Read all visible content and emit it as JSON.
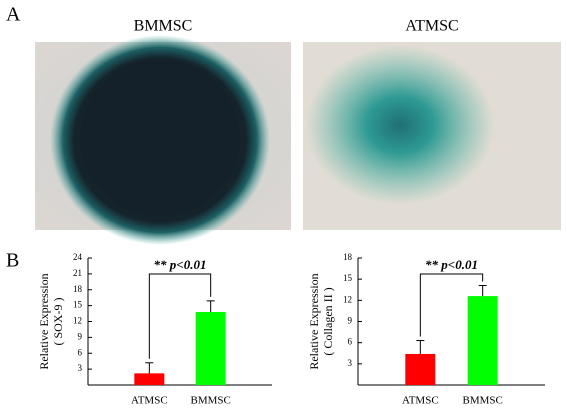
{
  "figure": {
    "panel_a": "A",
    "panel_b": "B",
    "image_labels": [
      "BMMSC",
      "ATMSC"
    ]
  },
  "chart_data": [
    {
      "type": "bar",
      "y_label": [
        "Relative Expression",
        "( SOX-9 )"
      ],
      "annotation": "** p<0.01",
      "categories": [
        "ATMSC",
        "BMMSC"
      ],
      "values": [
        2.2,
        13.8
      ],
      "errors": [
        2.0,
        2.1
      ],
      "colors": [
        "#ff0000",
        "#00ff00"
      ],
      "ylim": [
        0,
        24
      ],
      "yticks": [
        3,
        6,
        9,
        12,
        15,
        18,
        21,
        24
      ]
    },
    {
      "type": "bar",
      "y_label": [
        "Relative Expression",
        "( Collagen II )"
      ],
      "annotation": "** p<0.01",
      "categories": [
        "ATMSC",
        "BMMSC"
      ],
      "values": [
        4.4,
        12.6
      ],
      "errors": [
        1.9,
        1.5
      ],
      "colors": [
        "#ff0000",
        "#00ff00"
      ],
      "ylim": [
        0,
        18
      ],
      "yticks": [
        3,
        6,
        9,
        12,
        15,
        18
      ]
    }
  ]
}
